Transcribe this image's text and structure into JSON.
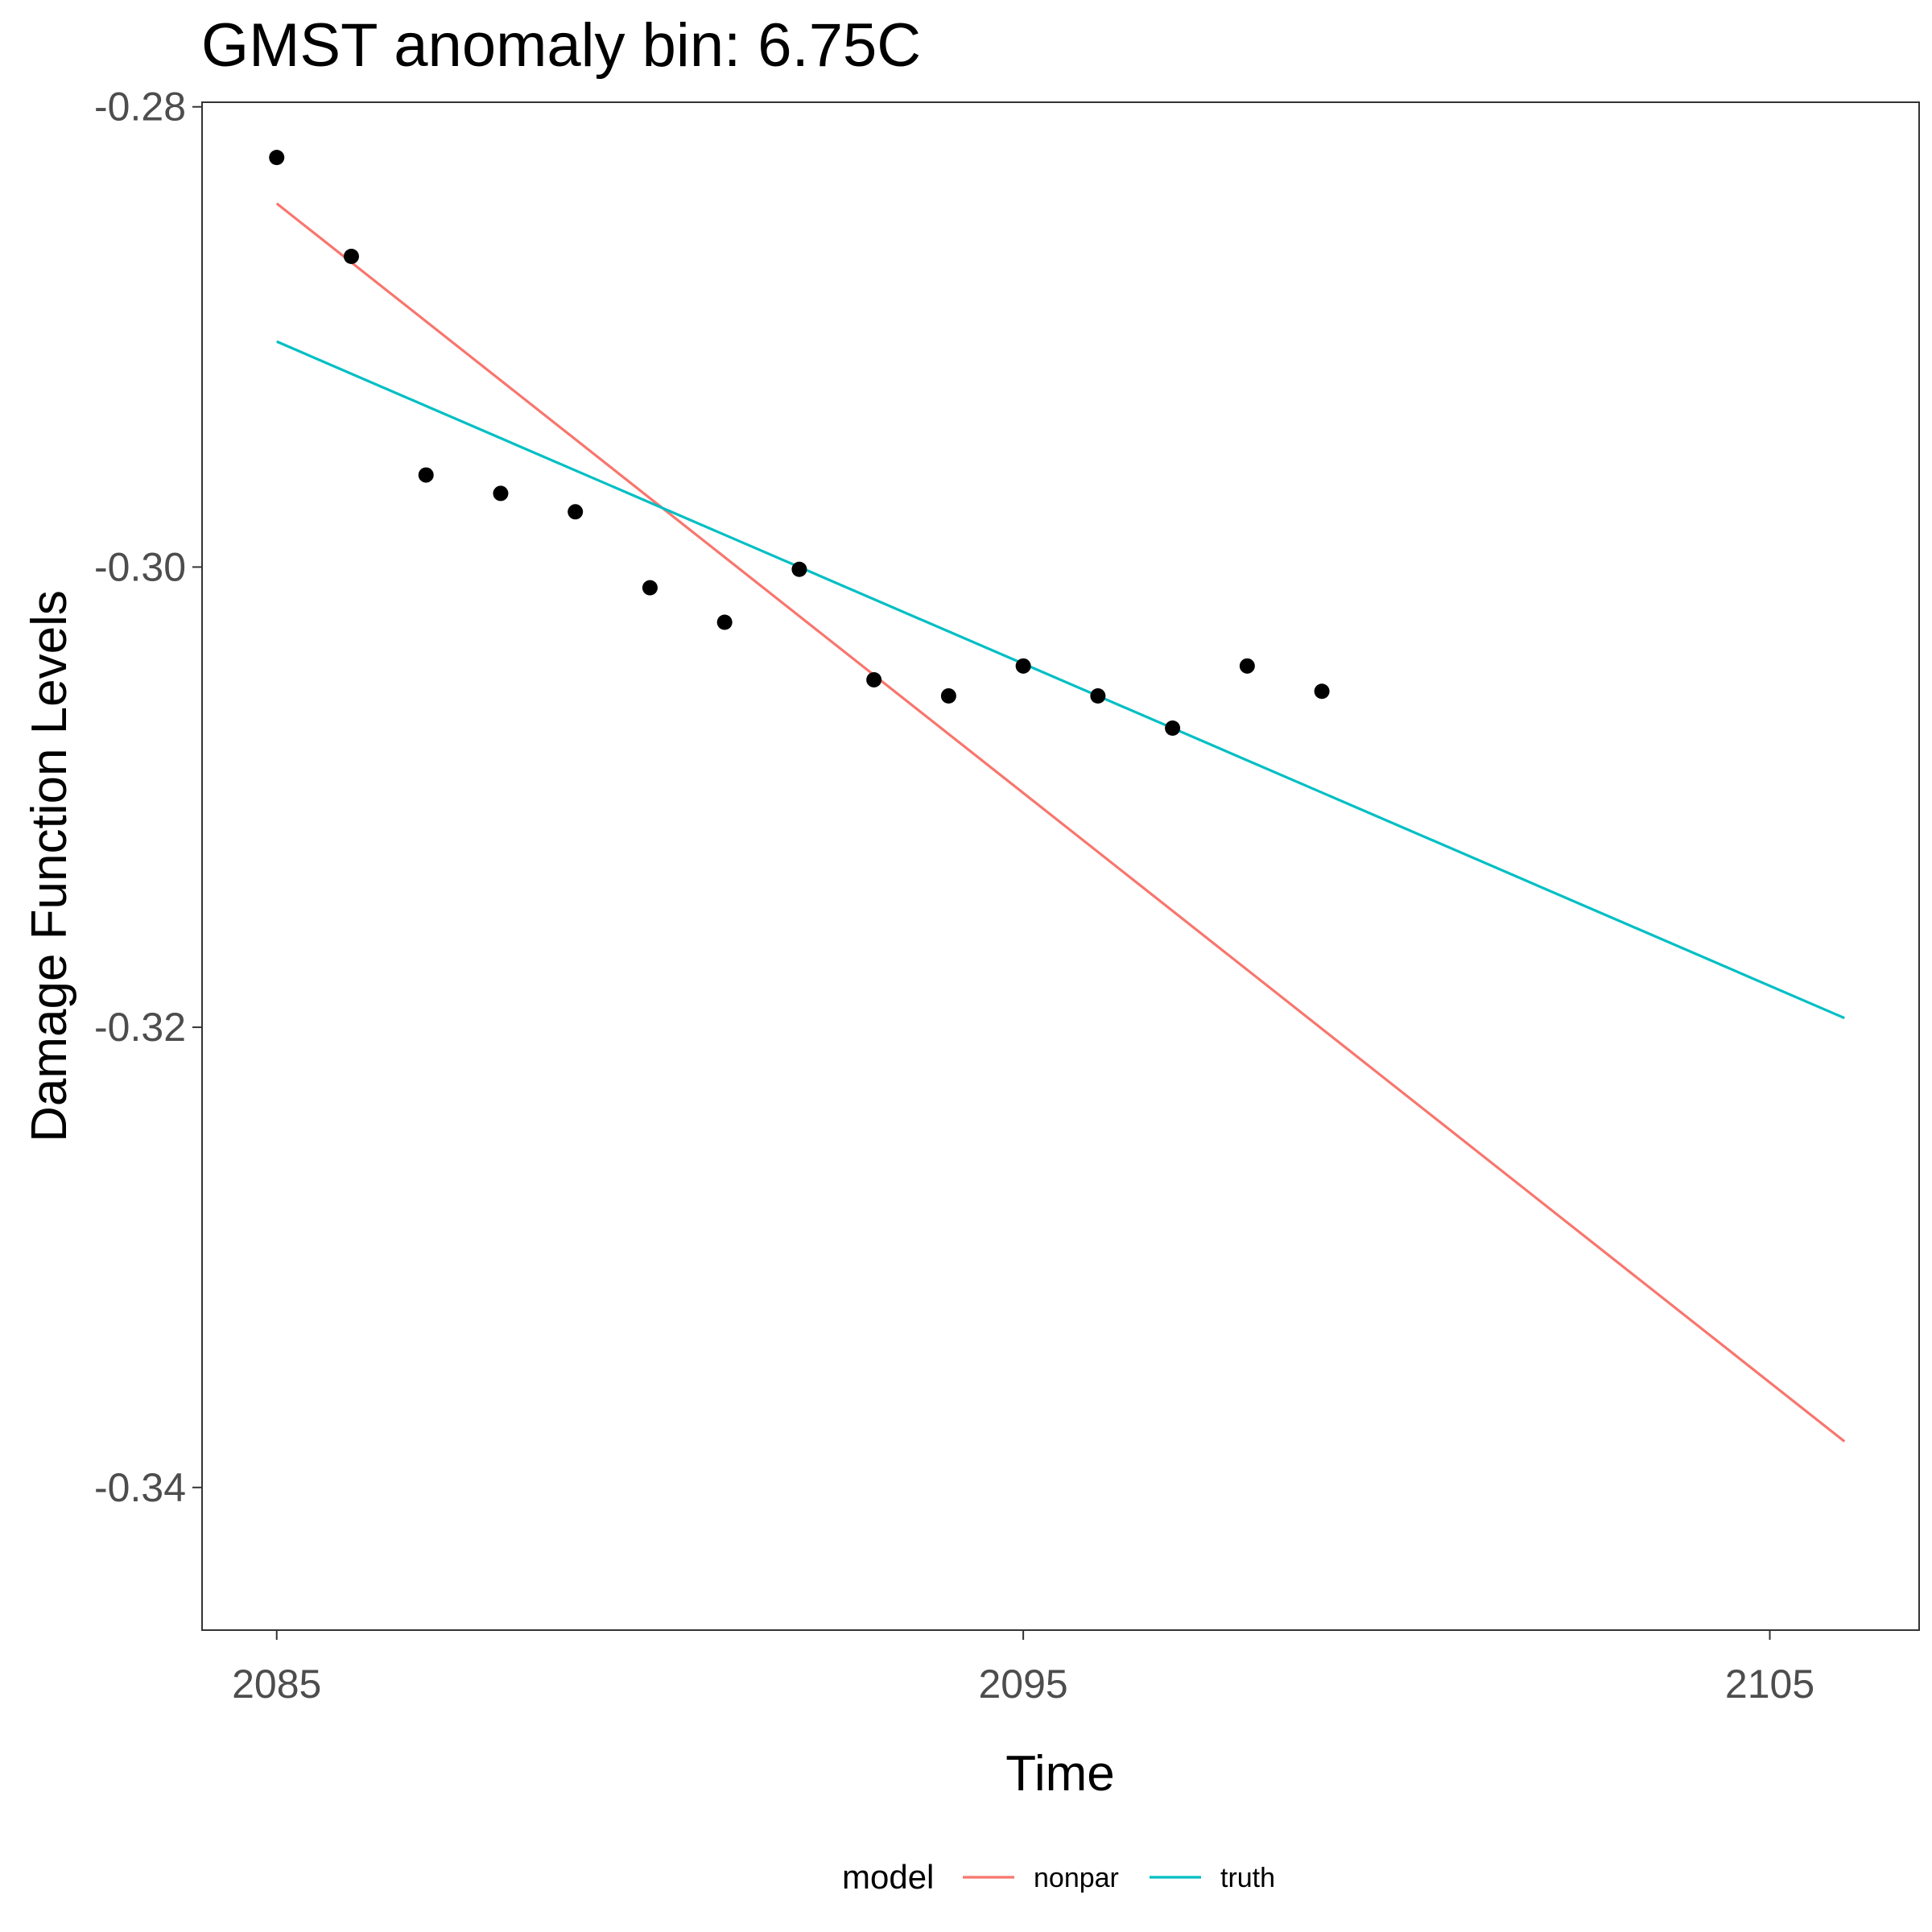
{
  "chart_data": {
    "type": "line",
    "title": "GMST anomaly bin: 6.75C",
    "xlabel": "Time",
    "ylabel": "Damage Function Levels",
    "xlim": [
      2084,
      2107
    ],
    "ylim": [
      -0.3462,
      -0.2798
    ],
    "x_ticks": [
      2085,
      2095,
      2105
    ],
    "x_tick_labels": [
      "2085",
      "2095",
      "2105"
    ],
    "y_ticks": [
      -0.34,
      -0.32,
      -0.3,
      -0.28
    ],
    "y_tick_labels": [
      "-0.34",
      "-0.32",
      "-0.30",
      "-0.28"
    ],
    "grid": false,
    "points": {
      "x": [
        2085,
        2086,
        2087,
        2088,
        2089,
        2090,
        2091,
        2092,
        2093,
        2094,
        2095,
        2096,
        2097,
        2098,
        2099
      ],
      "y": [
        -0.2822,
        -0.2865,
        -0.296,
        -0.2968,
        -0.2976,
        -0.3009,
        -0.3024,
        -0.3001,
        -0.3049,
        -0.3056,
        -0.3043,
        -0.3056,
        -0.307,
        -0.3043,
        -0.3054
      ]
    },
    "series": [
      {
        "name": "nonpar",
        "color": "#F8766D",
        "x": [
          2085,
          2106
        ],
        "y": [
          -0.2842,
          -0.338
        ]
      },
      {
        "name": "truth",
        "color": "#00BFC4",
        "x": [
          2085,
          2106
        ],
        "y": [
          -0.2902,
          -0.3196
        ]
      }
    ],
    "legend": {
      "title": "model",
      "position": "bottom"
    }
  }
}
